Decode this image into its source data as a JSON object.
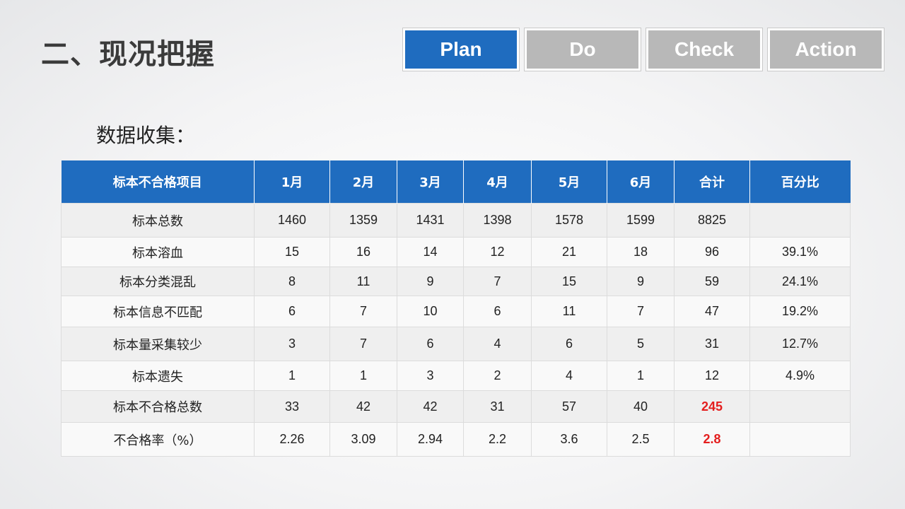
{
  "title": "二、现况把握",
  "pdca": [
    {
      "label": "Plan",
      "active": true
    },
    {
      "label": "Do",
      "active": false
    },
    {
      "label": "Check",
      "active": false
    },
    {
      "label": "Action",
      "active": false
    }
  ],
  "subtitle": "数据收集：",
  "table": {
    "headers": [
      "标本不合格项目",
      "1月",
      "2月",
      "3月",
      "4月",
      "5月",
      "6月",
      "合计",
      "百分比"
    ],
    "rows": [
      [
        "标本总数",
        "1460",
        "1359",
        "1431",
        "1398",
        "1578",
        "1599",
        "8825",
        ""
      ],
      [
        "标本溶血",
        "15",
        "16",
        "14",
        "12",
        "21",
        "18",
        "96",
        "39.1%"
      ],
      [
        "标本分类混乱",
        "8",
        "11",
        "9",
        "7",
        "15",
        "9",
        "59",
        "24.1%"
      ],
      [
        "标本信息不匹配",
        "6",
        "7",
        "10",
        "6",
        "11",
        "7",
        "47",
        "19.2%"
      ],
      [
        "标本量采集较少",
        "3",
        "7",
        "6",
        "4",
        "6",
        "5",
        "31",
        "12.7%"
      ],
      [
        "标本遗失",
        "1",
        "1",
        "3",
        "2",
        "4",
        "1",
        "12",
        "4.9%"
      ],
      [
        "标本不合格总数",
        "33",
        "42",
        "42",
        "31",
        "57",
        "40",
        "245",
        ""
      ],
      [
        "不合格率（%）",
        "2.26",
        "3.09",
        "2.94",
        "2.2",
        "3.6",
        "2.5",
        "2.8",
        ""
      ]
    ],
    "highlight_color": "#e41e1e",
    "header_color": "#1f6cbf"
  }
}
